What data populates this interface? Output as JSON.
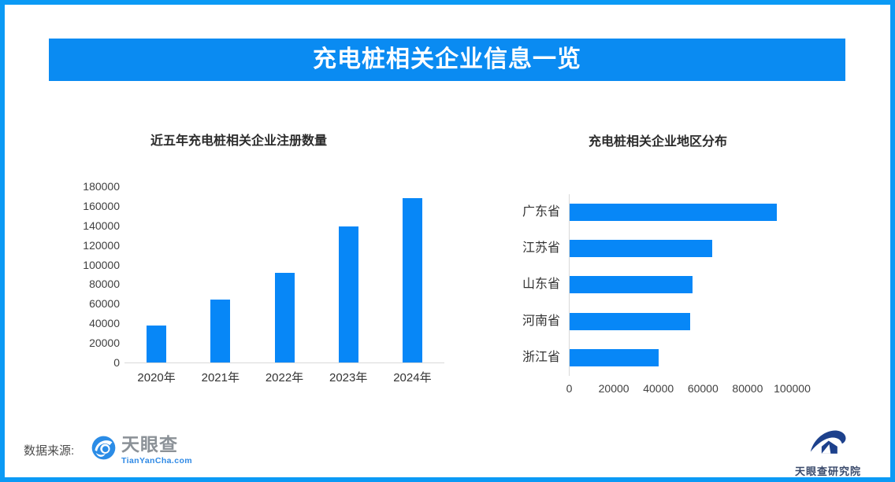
{
  "page": {
    "background": "#ffffff",
    "border_color": "#0b9af5"
  },
  "header": {
    "title": "充电桩相关企业信息一览",
    "bg_color": "#0a8bf2",
    "text_color": "#ffffff"
  },
  "chart_data": [
    {
      "type": "bar",
      "orientation": "vertical",
      "title": "近五年充电桩相关企业注册数量",
      "categories": [
        "2020年",
        "2021年",
        "2022年",
        "2023年",
        "2024年"
      ],
      "values": [
        38000,
        64000,
        92000,
        139000,
        168000
      ],
      "ylim": [
        0,
        180000
      ],
      "yticks": [
        0,
        20000,
        40000,
        60000,
        80000,
        100000,
        120000,
        140000,
        160000,
        180000
      ],
      "xlabel": "",
      "ylabel": "",
      "grid": false,
      "legend": false,
      "bar_color": "#0787f7",
      "axis_color": "#d9d9d9"
    },
    {
      "type": "bar",
      "orientation": "horizontal",
      "title": "充电桩相关企业地区分布",
      "categories": [
        "广东省",
        "江苏省",
        "山东省",
        "河南省",
        "浙江省"
      ],
      "values": [
        93000,
        64000,
        55000,
        54000,
        40000
      ],
      "xlim": [
        0,
        100000
      ],
      "xticks": [
        0,
        20000,
        40000,
        60000,
        80000,
        100000
      ],
      "xlabel": "",
      "ylabel": "",
      "grid": false,
      "legend": false,
      "bar_color": "#0787f7",
      "axis_color": "#d9d9d9"
    }
  ],
  "footer": {
    "source_label": "数据来源:",
    "tianyancha": {
      "name": "天眼查",
      "domain": "TianYanCha.com",
      "icon": "tianyancha-eye-logo",
      "brand_blue": "#2b8ce6",
      "name_color": "#8b9197"
    },
    "institute": {
      "name": "天眼查研究院",
      "icon": "tianyancha-institute-logo",
      "color": "#1d418c"
    }
  }
}
